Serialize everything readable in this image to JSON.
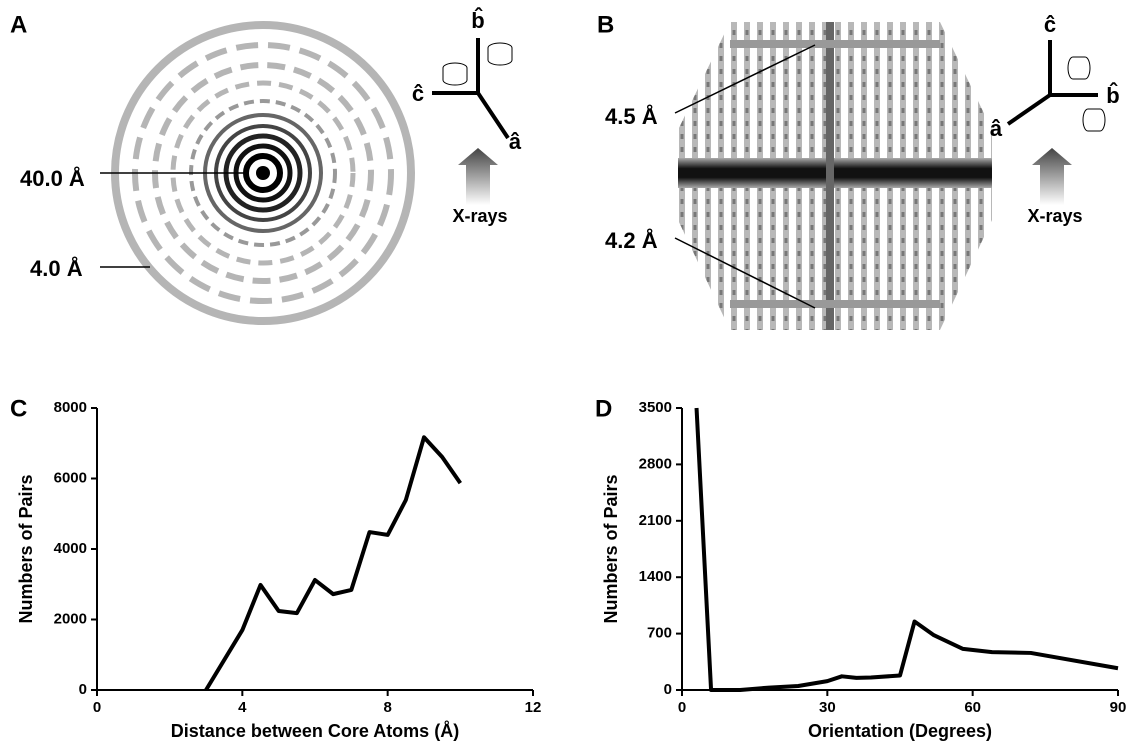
{
  "figure": {
    "panels": [
      {
        "letter": "A",
        "labels": [
          "40.0 Å",
          "4.0 Å"
        ],
        "axes": [
          "b̂",
          "ĉ",
          "â"
        ],
        "beam": "X-rays"
      },
      {
        "letter": "B",
        "labels": [
          "4.5 Å",
          "4.2 Å"
        ],
        "axes": [
          "ĉ",
          "b̂",
          "â"
        ],
        "beam": "X-rays"
      }
    ]
  },
  "chart_data": [
    {
      "type": "line",
      "panel": "C",
      "xlabel": "Distance between Core Atoms (Å)",
      "ylabel": "Numbers of Pairs",
      "x": [
        3,
        4,
        4.5,
        5,
        5.5,
        6,
        6.5,
        7,
        7.5,
        8,
        8.5,
        9,
        9.5,
        10
      ],
      "values": [
        0,
        1700,
        2980,
        2240,
        2180,
        3120,
        2720,
        2840,
        4480,
        4400,
        5390,
        7170,
        6610,
        5870
      ],
      "color": "#000000",
      "xlim": [
        0,
        12
      ],
      "xticks": [
        0,
        4,
        8,
        12
      ],
      "ylim": [
        0,
        8000
      ],
      "yticks": [
        0,
        2000,
        4000,
        6000,
        8000
      ]
    },
    {
      "type": "line",
      "panel": "D",
      "xlabel": "Orientation (Degrees)",
      "ylabel": "Numbers of Pairs",
      "x": [
        3,
        6,
        12,
        18,
        24,
        30,
        33,
        36,
        39,
        45,
        48,
        52,
        58,
        64,
        72,
        90
      ],
      "values": [
        3500,
        0,
        0,
        30,
        50,
        110,
        170,
        150,
        155,
        180,
        850,
        680,
        510,
        470,
        460,
        270
      ],
      "color": "#000000",
      "xlim": [
        0,
        90
      ],
      "xticks": [
        0,
        30,
        60,
        90
      ],
      "ylim": [
        0,
        3500
      ],
      "yticks": [
        0,
        700,
        1400,
        2100,
        2800,
        3500
      ]
    }
  ]
}
